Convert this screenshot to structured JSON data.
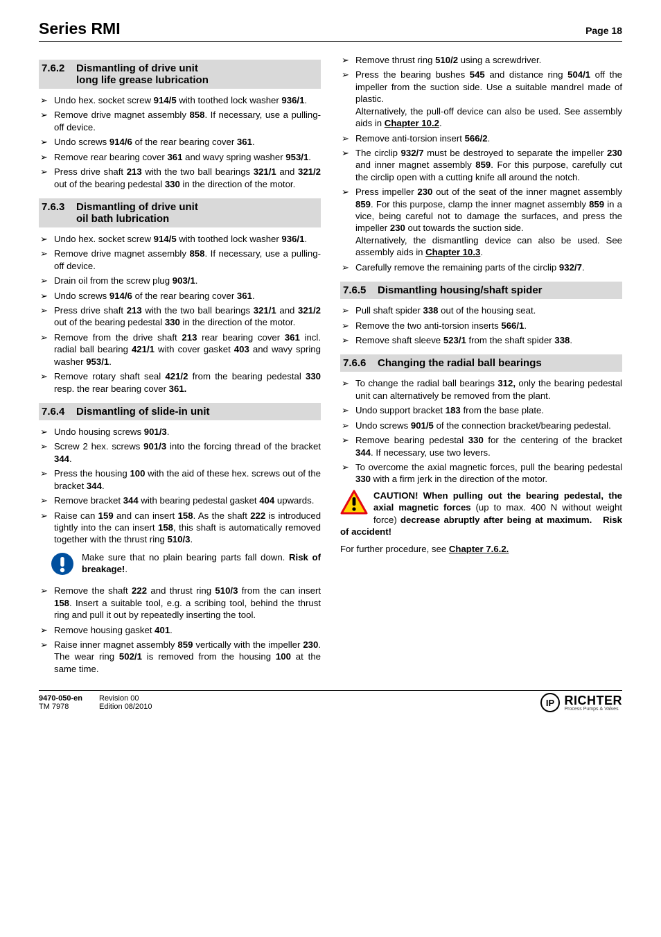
{
  "header": {
    "series": "Series RMI",
    "page": "Page 18"
  },
  "left": {
    "s762": {
      "num": "7.6.2",
      "title_line1": "Dismantling of drive unit",
      "title_line2": "long life grease lubrication",
      "items": [
        "Undo hex. socket screw <b>914/5</b> with toothed lock washer <b>936/1</b>.",
        "Remove drive magnet assembly <b>858</b>. If necessary, use a pulling-off device.",
        "Undo screws <b>914/6</b> of the rear bearing cover <b>361</b>.",
        "Remove rear bearing cover <b>361</b> and wavy spring washer <b>953/1</b>.",
        "Press drive shaft <b>213</b> with the two ball bearings <b>321/1</b> and <b>321/2</b> out of the bearing pedestal <b>330</b> in the direction of the motor."
      ]
    },
    "s763": {
      "num": "7.6.3",
      "title_line1": "Dismantling of drive unit",
      "title_line2": "oil bath lubrication",
      "items": [
        "Undo hex. socket screw <b>914/5</b> with toothed lock washer <b>936/1</b>.",
        "Remove drive magnet assembly <b>858</b>. If necessary, use a pulling-off device.",
        "Drain oil from the screw plug <b>903/1</b>.",
        "Undo screws <b>914/6</b> of the rear bearing cover <b>361</b>.",
        "Press drive shaft <b>213</b> with the two ball bearings <b>321/1</b> and <b>321/2</b> out of the bearing pedestal <b>330</b> in the direction of the motor.",
        "Remove from the drive shaft <b>213</b> rear bearing cover <b>361</b> incl. radial ball bearing <b>421/1</b> with cover gasket <b>403</b> and wavy spring washer <b>953/1</b>.",
        "Remove rotary shaft seal <b>421/2</b> from the bearing pedestal <b>330</b> resp. the rear bearing cover <b>361.</b>"
      ]
    },
    "s764": {
      "num": "7.6.4",
      "title": "Dismantling of slide-in unit",
      "items_a": [
        "Undo housing screws <b>901/3</b>.",
        "Screw 2 hex. screws <b>901/3</b> into the forcing thread of the bracket <b>344</b>.",
        "Press the housing <b>100</b> with the aid of these hex. screws out of the bracket <b>344</b>.",
        "Remove bracket <b>344</b> with bearing pedestal gasket <b>404</b> upwards.",
        "Raise can <b>159</b> and can insert <b>158</b>. As the shaft <b>222</b> is introduced tightly into the can insert <b>158</b>, this shaft is automatically removed together with the thrust ring <b>510/3</b>."
      ],
      "callout": "Make sure that no plain bearing parts fall down. <b>Risk of breakage!</b>.",
      "items_b": [
        "Remove the shaft <b>222</b> and thrust ring <b>510/3</b> from the can insert <b>158</b>. Insert a suitable tool, e.g. a scribing  tool, behind the thrust ring and pull it out by repeatedly inserting the tool.",
        "Remove housing gasket <b>401</b>.",
        "Raise inner magnet assembly <b>859</b> vertically with the impeller <b>230</b>. The wear ring <b>502/1</b> is removed from the housing <b>100</b> at the same time."
      ]
    }
  },
  "right": {
    "cont764": [
      "Remove thrust ring <b>510/2</b> using a screwdriver.",
      "Press the bearing bushes <b>545</b> and distance ring <b>504/1</b> off the impeller from the suction side. Use a suitable mandrel made of plastic.<br>Alternatively, the pull-off device can also be used. See assembly aids in <b class='u'>Chapter 10.2</b>.",
      "Remove anti-torsion insert <b>566/2</b>.",
      "The circlip <b>932/7</b> must be destroyed to separate the impeller <b>230</b> and inner magnet assembly <b>859</b>. For this purpose, carefully cut the circlip open with a cutting knife all around the notch.",
      "Press impeller <b>230</b> out of the seat of the inner magnet assembly <b>859</b>. For this purpose, clamp the inner magnet assembly <b>859</b> in a vice, being careful not to damage the surfaces, and press the impeller <b>230</b> out towards the suction side.<br>Alternatively, the dismantling device can also be used. See assembly aids in <b class='u'>Chapter 10.3</b>.",
      "Carefully remove the remaining parts of the circlip <b>932/7</b>."
    ],
    "s765": {
      "num": "7.6.5",
      "title": "Dismantling housing/shaft spider",
      "items": [
        "Pull shaft spider <b>338</b> out of the housing seat.",
        "Remove the two anti-torsion inserts <b>566/1</b>.",
        "Remove shaft sleeve <b>523/1</b> from the shaft spider <b>338</b>."
      ]
    },
    "s766": {
      "num": "7.6.6",
      "title": "Changing the radial ball bearings",
      "items": [
        "To change the radial ball bearings <b>312,</b> only the bearing pedestal unit can alternatively be removed from the plant.",
        "Undo support bracket <b>183</b> from the base plate.",
        "Undo screws <b>901/5</b> of the connection bracket/bearing pedestal.",
        "Remove bearing pedestal <b>330</b> for the centering of the bracket <b>344</b>. If necessary, use two levers.",
        "To overcome the axial magnetic forces, pull the bearing pedestal <b>330</b> with a firm jerk in the direction of the motor."
      ],
      "warn": "<b>CAUTION! When pulling out the bearing pedestal, the axial magnetic forces</b> (up to max. 400 N without weight force) <b>decrease abruptly after being at maximum.&nbsp;&nbsp; Risk of accident!</b>",
      "after": "For further procedure, see <b class='u'>Chapter 7.6.2.</b>"
    }
  },
  "footer": {
    "doc_no": "9470-050-en",
    "tm": "TM 7978",
    "rev": "Revision  00",
    "edition": "Edition   08/2010",
    "brand": "RICHTER",
    "tag": "Process Pumps & Valves"
  },
  "colors": {
    "heading_bg": "#d9d9d9",
    "info_icon": "#004f9e",
    "warn_stroke": "#e30613",
    "warn_fill": "#ffd500"
  }
}
